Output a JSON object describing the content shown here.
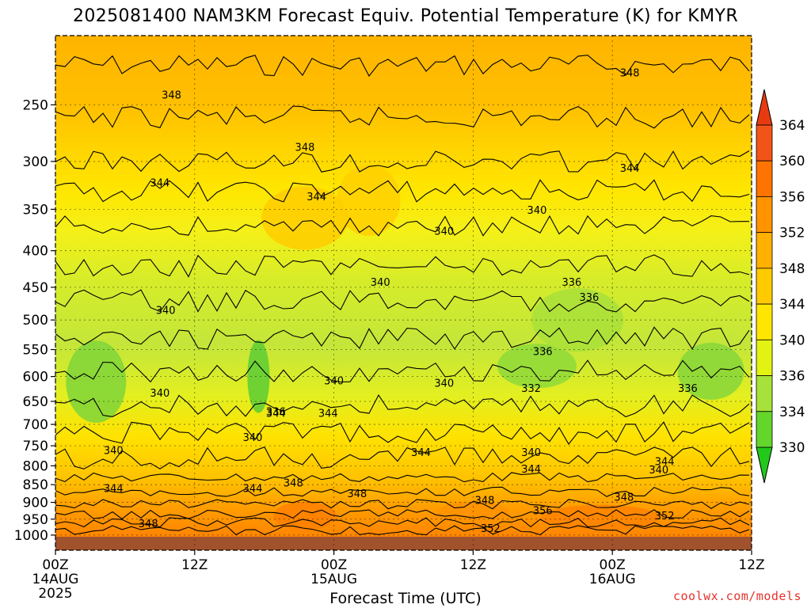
{
  "chart_data": {
    "type": "contour",
    "title": "2025081400 NAM3KM Forecast Equiv. Potential Temperature (K) for KMYR",
    "xlabel": "Forecast Time (UTC)",
    "ylabel": "",
    "y_axis": {
      "scale": "log-pressure",
      "inverted": true,
      "range": [
        1050,
        200
      ],
      "ticks": [
        250,
        300,
        350,
        400,
        450,
        500,
        550,
        600,
        650,
        700,
        750,
        800,
        850,
        900,
        950,
        1000
      ]
    },
    "x_axis": {
      "range_hours": [
        0,
        60
      ],
      "ticks": [
        {
          "hour": 0,
          "label": "00Z",
          "sub": "14AUG",
          "sub2": "2025"
        },
        {
          "hour": 12,
          "label": "12Z",
          "sub": "",
          "sub2": ""
        },
        {
          "hour": 24,
          "label": "00Z",
          "sub": "15AUG",
          "sub2": ""
        },
        {
          "hour": 36,
          "label": "12Z",
          "sub": "",
          "sub2": ""
        },
        {
          "hour": 48,
          "label": "00Z",
          "sub": "16AUG",
          "sub2": ""
        },
        {
          "hour": 60,
          "label": "12Z",
          "sub": "",
          "sub2": ""
        }
      ]
    },
    "grid": true,
    "colorbar": {
      "position": "right",
      "levels": [
        330,
        334,
        336,
        340,
        344,
        348,
        352,
        356,
        360,
        364
      ],
      "colors": [
        "#22c81a",
        "#63d52b",
        "#a6e23a",
        "#e2f212",
        "#ffe600",
        "#ffca00",
        "#ffb000",
        "#ff9400",
        "#ff7400",
        "#f25418"
      ]
    },
    "field_description": {
      "upper_levels_250_300hPa": 348,
      "mid_levels_400hPa": 342,
      "mid_levels_500_600hPa_min": 332,
      "lower_levels_850_900hPa": 348,
      "boundary_layer_950_1000hPa_max": 356
    },
    "contour_labels": [
      {
        "value": "348",
        "hour": 10.0,
        "p": 245
      },
      {
        "value": "348",
        "hour": 21.5,
        "p": 290
      },
      {
        "value": "348",
        "hour": 49.5,
        "p": 228
      },
      {
        "value": "344",
        "hour": 9.0,
        "p": 325
      },
      {
        "value": "344",
        "hour": 22.5,
        "p": 340
      },
      {
        "value": "344",
        "hour": 49.5,
        "p": 310
      },
      {
        "value": "340",
        "hour": 33.5,
        "p": 380
      },
      {
        "value": "340",
        "hour": 41.5,
        "p": 355
      },
      {
        "value": "340",
        "hour": 28.0,
        "p": 448
      },
      {
        "value": "340",
        "hour": 9.5,
        "p": 490
      },
      {
        "value": "340",
        "hour": 9.0,
        "p": 640
      },
      {
        "value": "340",
        "hour": 24.0,
        "p": 615
      },
      {
        "value": "340",
        "hour": 33.5,
        "p": 620
      },
      {
        "value": "340",
        "hour": 5.0,
        "p": 770
      },
      {
        "value": "340",
        "hour": 17.0,
        "p": 738
      },
      {
        "value": "340",
        "hour": 41.0,
        "p": 775
      },
      {
        "value": "344",
        "hour": 19.0,
        "p": 683
      },
      {
        "value": "344",
        "hour": 23.5,
        "p": 683
      },
      {
        "value": "344",
        "hour": 31.5,
        "p": 775
      },
      {
        "value": "344",
        "hour": 41.0,
        "p": 818
      },
      {
        "value": "344",
        "hour": 52.5,
        "p": 798
      },
      {
        "value": "340",
        "hour": 52.0,
        "p": 820
      },
      {
        "value": "336",
        "hour": 19.0,
        "p": 680
      },
      {
        "value": "336",
        "hour": 44.5,
        "p": 448
      },
      {
        "value": "336",
        "hour": 46.0,
        "p": 470
      },
      {
        "value": "336",
        "hour": 42.0,
        "p": 560
      },
      {
        "value": "332",
        "hour": 41.0,
        "p": 630
      },
      {
        "value": "336",
        "hour": 54.5,
        "p": 630
      },
      {
        "value": "344",
        "hour": 5.0,
        "p": 870
      },
      {
        "value": "344",
        "hour": 17.0,
        "p": 870
      },
      {
        "value": "348",
        "hour": 20.5,
        "p": 855
      },
      {
        "value": "348",
        "hour": 26.0,
        "p": 885
      },
      {
        "value": "348",
        "hour": 37.0,
        "p": 905
      },
      {
        "value": "348",
        "hour": 49.0,
        "p": 895
      },
      {
        "value": "348",
        "hour": 8.0,
        "p": 975
      },
      {
        "value": "356",
        "hour": 42.0,
        "p": 935
      },
      {
        "value": "352",
        "hour": 52.5,
        "p": 950
      },
      {
        "value": "352",
        "hour": 37.5,
        "p": 990
      }
    ]
  },
  "credit": "coolwx.com/models"
}
